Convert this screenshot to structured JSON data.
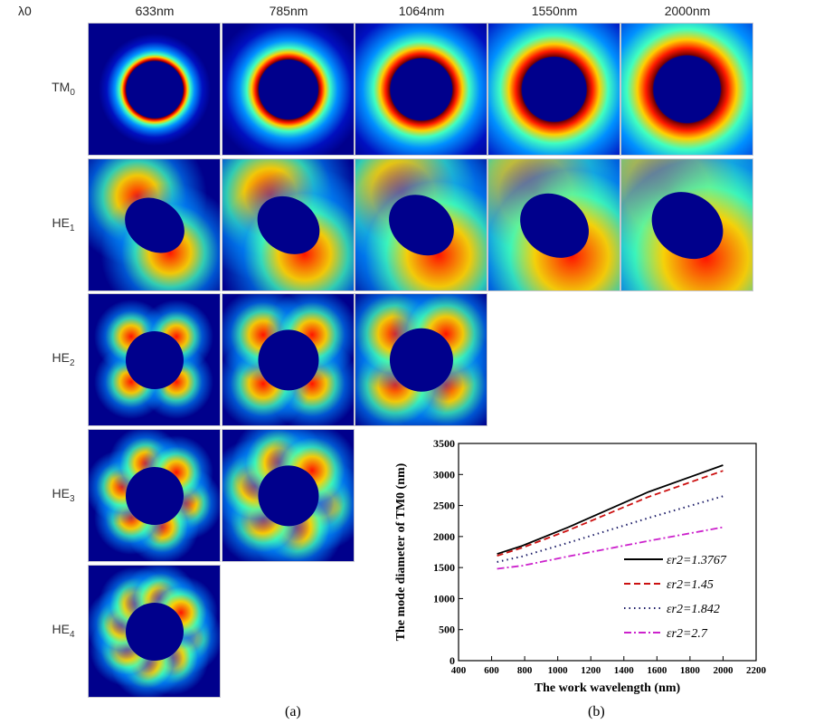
{
  "panel_a": {
    "lambda_label": "λ0",
    "wavelengths": [
      "633nm",
      "785nm",
      "1064nm",
      "1550nm",
      "2000nm"
    ],
    "modes": [
      {
        "base": "TM",
        "sub": "0",
        "lobes": 0,
        "available": [
          true,
          true,
          true,
          true,
          true
        ]
      },
      {
        "base": "HE",
        "sub": "1",
        "lobes": 2,
        "available": [
          true,
          true,
          true,
          true,
          true
        ]
      },
      {
        "base": "HE",
        "sub": "2",
        "lobes": 4,
        "available": [
          true,
          true,
          true,
          false,
          false
        ]
      },
      {
        "base": "HE",
        "sub": "3",
        "lobes": 6,
        "available": [
          true,
          true,
          false,
          false,
          false
        ]
      },
      {
        "base": "HE",
        "sub": "4",
        "lobes": 8,
        "available": [
          true,
          false,
          false,
          false,
          false
        ]
      }
    ],
    "caption": "(a)"
  },
  "chart_data": {
    "type": "line",
    "title": "",
    "xlabel": "The work wavelength (nm)",
    "ylabel": "The mode diameter of TM0 (nm)",
    "xlim": [
      400,
      2200
    ],
    "ylim": [
      0,
      3500
    ],
    "xticks": [
      "400",
      "600",
      "800",
      "1000",
      "1200",
      "1400",
      "1600",
      "1800",
      "2000",
      "2200"
    ],
    "yticks": [
      "0",
      "500",
      "1000",
      "1500",
      "2000",
      "2500",
      "3000",
      "3500"
    ],
    "x": [
      633,
      785,
      1064,
      1550,
      2000
    ],
    "legend_position": "bottom-right",
    "series": [
      {
        "name": "εr2=1.3767",
        "values": [
          1720,
          1850,
          2150,
          2720,
          3150
        ],
        "color": "#000000",
        "dash": ""
      },
      {
        "name": "εr2=1.45",
        "values": [
          1690,
          1820,
          2100,
          2640,
          3060
        ],
        "color": "#cc1111",
        "dash": "7,4"
      },
      {
        "name": "εr2=1.842",
        "values": [
          1590,
          1680,
          1900,
          2300,
          2650
        ],
        "color": "#1a1a66",
        "dash": "1.5,4"
      },
      {
        "name": "εr2=2.7",
        "values": [
          1480,
          1530,
          1680,
          1930,
          2150
        ],
        "color": "#cc22cc",
        "dash": "8,3,2,3"
      }
    ],
    "caption": "(b)"
  }
}
